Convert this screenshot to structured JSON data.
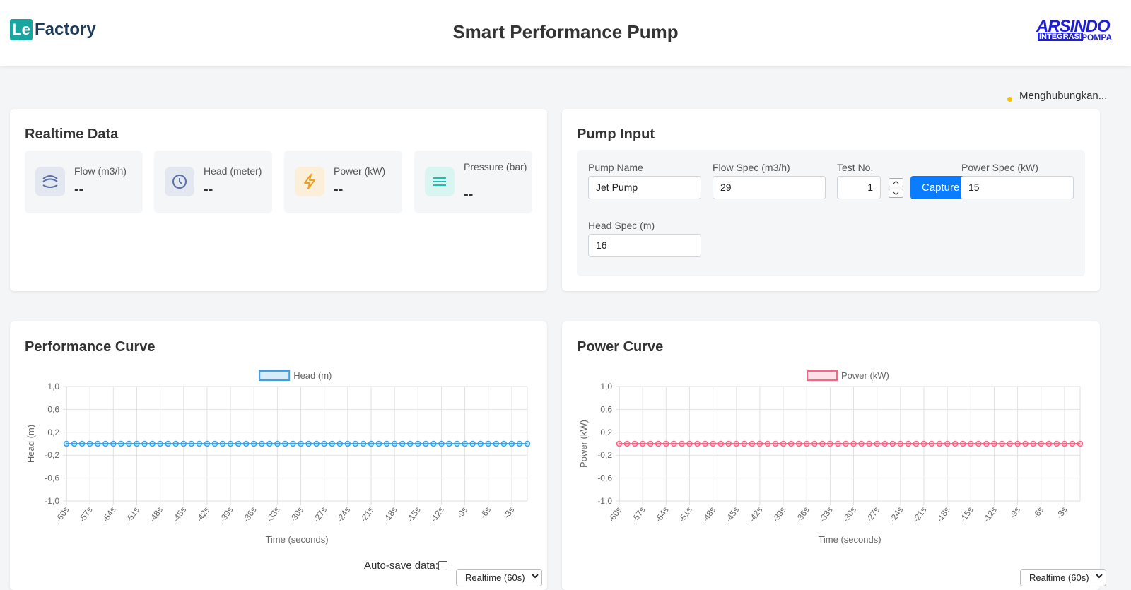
{
  "header": {
    "logo_prefix": "Le",
    "logo_text": "Factory",
    "title": "Smart Performance Pump",
    "brand": "ARSINDO",
    "brand_sub_1": "INTEGRASI",
    "brand_sub_2": "POMPA"
  },
  "status": "Menghubungkan...",
  "realtime": {
    "title": "Realtime Data",
    "tiles": [
      {
        "label": "Flow (m3/h)",
        "value": "--"
      },
      {
        "label": "Head (meter)",
        "value": "--"
      },
      {
        "label": "Power (kW)",
        "value": "--"
      },
      {
        "label": "Pressure (bar)",
        "value": "--"
      }
    ]
  },
  "pump_input": {
    "title": "Pump Input",
    "capture": "Capture",
    "fields": [
      {
        "label": "Pump Name",
        "value": "Jet Pump"
      },
      {
        "label": "Flow Spec (m3/h)",
        "value": 29
      },
      {
        "label": "Test No.",
        "value": 1
      },
      {
        "label": "Power Spec (kW)",
        "value": 15
      },
      {
        "label": "Head Spec (m)",
        "value": 16
      }
    ]
  },
  "controls": [
    {
      "autosave": "Auto-save data:",
      "range": "Realtime (60s)"
    },
    {
      "range": "Realtime (60s)"
    }
  ],
  "chart_data": [
    {
      "type": "line",
      "title": "Performance Curve",
      "x_label": "Time (seconds)",
      "y_label": "Head (m)",
      "categories": [
        "-60s",
        null,
        null,
        "-57s",
        null,
        null,
        "-54s",
        null,
        null,
        "-51s",
        null,
        null,
        "-48s",
        null,
        null,
        "-45s",
        null,
        null,
        "-42s",
        null,
        null,
        "-39s",
        null,
        null,
        "-36s",
        null,
        null,
        "-33s",
        null,
        null,
        "-30s",
        null,
        null,
        "-27s",
        null,
        null,
        "-24s",
        null,
        null,
        "-21s",
        null,
        null,
        "-18s",
        null,
        null,
        "-15s",
        null,
        null,
        "-12s",
        null,
        null,
        "-9s",
        null,
        null,
        "-6s",
        null,
        null,
        "-3s",
        null,
        null
      ],
      "series": [
        {
          "name": "Head (m)",
          "color": "#36a2eb",
          "values": [
            0,
            0,
            0,
            0,
            0,
            0,
            0,
            0,
            0,
            0,
            0,
            0,
            0,
            0,
            0,
            0,
            0,
            0,
            0,
            0,
            0,
            0,
            0,
            0,
            0,
            0,
            0,
            0,
            0,
            0,
            0,
            0,
            0,
            0,
            0,
            0,
            0,
            0,
            0,
            0,
            0,
            0,
            0,
            0,
            0,
            0,
            0,
            0,
            0,
            0,
            0,
            0,
            0,
            0,
            0,
            0,
            0,
            0,
            0,
            0
          ]
        }
      ],
      "ylim": [
        -1,
        1
      ],
      "yticks": [
        {
          "value": 1,
          "label": "1,0"
        },
        {
          "value": 0.6,
          "label": "0,6"
        },
        {
          "value": 0.2,
          "label": "0,2"
        },
        {
          "value": -0.2,
          "label": "-0,2"
        },
        {
          "value": -0.6,
          "label": "-0,6"
        },
        {
          "value": -1,
          "label": "-1,0"
        }
      ],
      "grid": true,
      "legend": "top"
    },
    {
      "type": "line",
      "title": "Power Curve",
      "x_label": "Time (seconds)",
      "y_label": "Power (kW)",
      "categories": [
        "-60s",
        null,
        null,
        "-57s",
        null,
        null,
        "-54s",
        null,
        null,
        "-51s",
        null,
        null,
        "-48s",
        null,
        null,
        "-45s",
        null,
        null,
        "-42s",
        null,
        null,
        "-39s",
        null,
        null,
        "-36s",
        null,
        null,
        "-33s",
        null,
        null,
        "-30s",
        null,
        null,
        "-27s",
        null,
        null,
        "-24s",
        null,
        null,
        "-21s",
        null,
        null,
        "-18s",
        null,
        null,
        "-15s",
        null,
        null,
        "-12s",
        null,
        null,
        "-9s",
        null,
        null,
        "-6s",
        null,
        null,
        "-3s",
        null,
        null
      ],
      "series": [
        {
          "name": "Power (kW)",
          "color": "#ff6384",
          "values": [
            0,
            0,
            0,
            0,
            0,
            0,
            0,
            0,
            0,
            0,
            0,
            0,
            0,
            0,
            0,
            0,
            0,
            0,
            0,
            0,
            0,
            0,
            0,
            0,
            0,
            0,
            0,
            0,
            0,
            0,
            0,
            0,
            0,
            0,
            0,
            0,
            0,
            0,
            0,
            0,
            0,
            0,
            0,
            0,
            0,
            0,
            0,
            0,
            0,
            0,
            0,
            0,
            0,
            0,
            0,
            0,
            0,
            0,
            0,
            0
          ]
        }
      ],
      "ylim": [
        -1,
        1
      ],
      "yticks": [
        {
          "value": 1,
          "label": "1,0"
        },
        {
          "value": 0.6,
          "label": "0,6"
        },
        {
          "value": 0.2,
          "label": "0,2"
        },
        {
          "value": -0.2,
          "label": "-0,2"
        },
        {
          "value": -0.6,
          "label": "-0,6"
        },
        {
          "value": -1,
          "label": "-1,0"
        }
      ],
      "grid": true,
      "legend": "top"
    }
  ]
}
